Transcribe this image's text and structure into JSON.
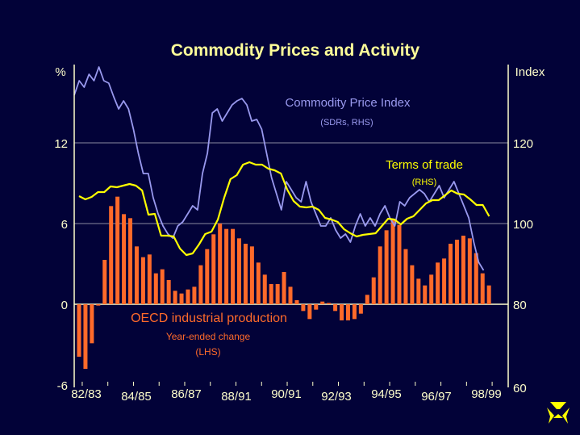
{
  "chart_data": {
    "type": "bar+line",
    "title": "Commodity Prices and Activity",
    "left_axis": {
      "unit_label": "%",
      "ticks": [
        -6,
        0,
        6,
        12
      ],
      "tick_labels": [
        "-6",
        "0",
        "6",
        "12"
      ],
      "range": [
        -6,
        18
      ]
    },
    "right_axis": {
      "unit_label": "Index",
      "ticks": [
        60,
        80,
        100,
        120
      ],
      "tick_labels": [
        "60",
        "80",
        "100",
        "120"
      ],
      "range": [
        60,
        140
      ]
    },
    "x_labels": [
      "82/83",
      "84/85",
      "86/87",
      "88/91",
      "90/91",
      "92/93",
      "94/95",
      "96/97",
      "98/99"
    ],
    "x_unit": "quarters",
    "series": [
      {
        "name": "OECD industrial production",
        "sublabel": "Year-ended change",
        "axis_note": "(LHS)",
        "type": "bar",
        "color": "#FF6A2A",
        "values": [
          -3.9,
          -4.8,
          -2.9,
          -0.1,
          3.3,
          7.3,
          8.0,
          6.7,
          6.4,
          4.3,
          3.5,
          3.7,
          2.3,
          2.6,
          1.8,
          1.0,
          0.8,
          1.1,
          1.3,
          2.9,
          4.1,
          5.2,
          6.0,
          5.6,
          5.6,
          4.9,
          4.5,
          4.3,
          3.1,
          2.2,
          1.5,
          1.5,
          2.4,
          1.3,
          0.3,
          -0.5,
          -1.1,
          -0.4,
          0.2,
          0.1,
          -0.5,
          -1.2,
          -1.2,
          -1.1,
          -0.7,
          0.7,
          2.0,
          4.3,
          5.5,
          6.3,
          5.9,
          4.1,
          2.9,
          1.9,
          1.4,
          2.2,
          3.1,
          3.4,
          4.5,
          4.8,
          5.1,
          4.9,
          3.8,
          2.3,
          1.4
        ]
      },
      {
        "name": "Commodity Price Index",
        "axis_note": "(SDRs, RHS)",
        "type": "line",
        "color": "#9999EE",
        "x_start": -0.75,
        "x_step": 0.77,
        "values": [
          131.8,
          135.4,
          133.8,
          137,
          135.4,
          138.8,
          135.4,
          134.8,
          131.4,
          128.4,
          130.4,
          128.4,
          123.4,
          117.4,
          112.4,
          112.4,
          106.4,
          102.4,
          99.4,
          97.4,
          96.4,
          99.4,
          100.4,
          102.4,
          104.4,
          103.4,
          112.4,
          117.4,
          127.4,
          128.4,
          125.4,
          127.4,
          129.4,
          130.4,
          131,
          129.4,
          125.4,
          125.8,
          123.4,
          117.4,
          111.4,
          107.4,
          103.4,
          110.4,
          108.4,
          106.4,
          105.4,
          110.4,
          105.4,
          102.4,
          99.4,
          99.4,
          101.4,
          98.4,
          96.4,
          97.4,
          95.4,
          99.4,
          102.4,
          99.4,
          101.4,
          99.4,
          102.4,
          104.4,
          101.4,
          99.4,
          105.4,
          104.4,
          106.4,
          107.4,
          108.4,
          107.4,
          105.4,
          107.4,
          109.4,
          106.4,
          108.4,
          110.4,
          107.4,
          104.4,
          101.4,
          95.4,
          90.4,
          88.4
        ]
      },
      {
        "name": "Terms of trade",
        "axis_note": "(RHS)",
        "type": "line",
        "color": "#FFFF00",
        "x_start": 0,
        "x_step": 0.985,
        "values": [
          106.8,
          106,
          106.6,
          107.8,
          107.8,
          109.2,
          109,
          109.4,
          109.8,
          109.4,
          108.2,
          102.2,
          102.4,
          97,
          97,
          96.8,
          93.8,
          92.2,
          92.6,
          94.8,
          97.4,
          98,
          101,
          106.4,
          111,
          112,
          114.6,
          115.2,
          114.6,
          114.6,
          113.6,
          113.2,
          112.4,
          108.4,
          105.6,
          104.2,
          104,
          104.2,
          103.4,
          101.4,
          101,
          100.4,
          98.6,
          97.6,
          96.8,
          97.2,
          97.4,
          97.6,
          99.4,
          101.2,
          101,
          99.8,
          101.2,
          101.8,
          103.4,
          105,
          105.8,
          105.8,
          107,
          108.2,
          107.4,
          107.2,
          106,
          104.6,
          104.6,
          101.8
        ]
      }
    ]
  },
  "logo": "yellow-trefoil-logo"
}
